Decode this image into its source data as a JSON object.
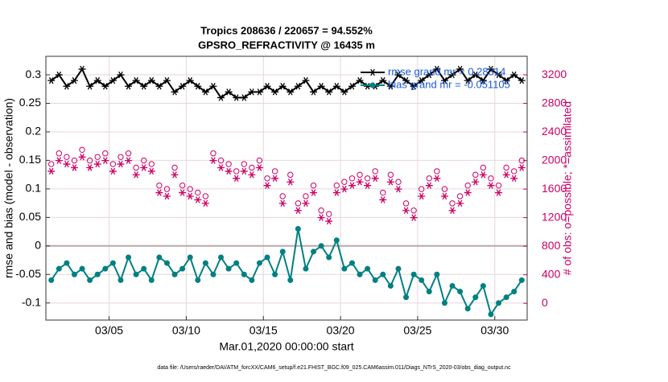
{
  "chart_data": {
    "type": "line",
    "title": "Tropics 208636 / 220657 = 94.552%",
    "subtitle": "GPSRO_REFRACTIVITY @ 16435 m",
    "x_label": "Mar.01,2020 00:00:00 start",
    "y_label": "rmse and bias (model - observation)",
    "y2_label": "# of obs: o=possible; *=assimilated",
    "footnote": "data file: /Users/raeder/DAI/ATM_forcXX/CAM6_setup/f.e21.FHIST_BGC.f09_025.CAM6assim.011/Diags_NTrS_2020-03/obs_diag_output.nc",
    "grid": true,
    "legend": "upper right",
    "xlim": [
      0.9,
      32.1
    ],
    "xticks": [
      {
        "value": 5,
        "label": "03/05"
      },
      {
        "value": 10,
        "label": "03/10"
      },
      {
        "value": 15,
        "label": "03/15"
      },
      {
        "value": 20,
        "label": "03/20"
      },
      {
        "value": 25,
        "label": "03/25"
      },
      {
        "value": 30,
        "label": "03/30"
      }
    ],
    "ylim": [
      -0.13,
      0.3325
    ],
    "yticks": [
      -0.1,
      -0.05,
      0,
      0.05,
      0.1,
      0.15,
      0.2,
      0.25,
      0.3
    ],
    "y2lim": [
      -235,
      3460
    ],
    "y2ticks": [
      0,
      400,
      800,
      1200,
      1600,
      2000,
      2400,
      2800,
      3200
    ],
    "x": [
      1.25,
      1.75,
      2.25,
      2.75,
      3.25,
      3.75,
      4.25,
      4.75,
      5.25,
      5.75,
      6.25,
      6.75,
      7.25,
      7.75,
      8.25,
      8.75,
      9.25,
      9.75,
      10.25,
      10.75,
      11.25,
      11.75,
      12.25,
      12.75,
      13.25,
      13.75,
      14.25,
      14.75,
      15.25,
      15.75,
      16.25,
      16.75,
      17.25,
      17.75,
      18.25,
      18.75,
      19.25,
      19.75,
      20.25,
      20.75,
      21.25,
      21.75,
      22.25,
      22.75,
      23.25,
      23.75,
      24.25,
      24.75,
      25.25,
      25.75,
      26.25,
      26.75,
      27.25,
      27.75,
      28.25,
      28.75,
      29.25,
      29.75,
      30.25,
      30.75,
      31.25,
      31.75
    ],
    "series": [
      {
        "name": "rmse grand mr = 0.28314",
        "color": "#000000",
        "marker": "asterisk",
        "line": true,
        "values": [
          0.29,
          0.3,
          0.28,
          0.29,
          0.31,
          0.28,
          0.29,
          0.28,
          0.29,
          0.3,
          0.28,
          0.29,
          0.28,
          0.29,
          0.28,
          0.29,
          0.27,
          0.28,
          0.29,
          0.28,
          0.27,
          0.28,
          0.26,
          0.27,
          0.26,
          0.26,
          0.27,
          0.27,
          0.28,
          0.27,
          0.28,
          0.27,
          0.28,
          0.29,
          0.27,
          0.28,
          0.27,
          0.28,
          0.27,
          0.28,
          0.29,
          0.28,
          0.28,
          0.29,
          0.28,
          0.3,
          0.29,
          0.28,
          0.29,
          0.3,
          0.31,
          0.29,
          0.3,
          0.31,
          0.29,
          0.3,
          0.29,
          0.31,
          0.3,
          0.29,
          0.3,
          0.29
        ]
      },
      {
        "name": "bias grand mr = -0.051105",
        "color": "#008080",
        "marker": "dot",
        "line": true,
        "values": [
          -0.06,
          -0.04,
          -0.03,
          -0.05,
          -0.04,
          -0.06,
          -0.05,
          -0.04,
          -0.03,
          -0.06,
          -0.02,
          -0.05,
          -0.04,
          -0.06,
          -0.02,
          -0.03,
          -0.05,
          -0.04,
          -0.02,
          -0.06,
          -0.03,
          -0.05,
          -0.02,
          -0.04,
          -0.03,
          -0.05,
          -0.06,
          -0.03,
          -0.02,
          -0.05,
          -0.01,
          -0.06,
          0.03,
          -0.04,
          -0.01,
          0,
          -0.02,
          0.01,
          -0.04,
          -0.03,
          -0.05,
          -0.04,
          -0.06,
          -0.05,
          -0.07,
          -0.04,
          -0.09,
          -0.05,
          -0.06,
          -0.08,
          -0.05,
          -0.1,
          -0.07,
          -0.08,
          -0.11,
          -0.09,
          -0.07,
          -0.12,
          -0.1,
          -0.09,
          -0.08,
          -0.06
        ]
      },
      {
        "color": "#cc0066",
        "marker": "circle",
        "line": false,
        "axis": "y2",
        "values": [
          1950,
          2100,
          2050,
          2000,
          2150,
          2000,
          2050,
          2100,
          1950,
          2050,
          2100,
          1900,
          2000,
          1950,
          1650,
          1600,
          1900,
          1650,
          1600,
          1550,
          1500,
          2100,
          2000,
          1950,
          1850,
          1950,
          1900,
          2000,
          1750,
          1850,
          1500,
          1800,
          1400,
          1500,
          1650,
          1300,
          1250,
          1650,
          1700,
          1750,
          1800,
          1750,
          1850,
          1550,
          1800,
          1700,
          1400,
          1300,
          1600,
          1750,
          1850,
          1600,
          1400,
          1500,
          1650,
          1800,
          1900,
          1750,
          1650,
          1900,
          1850,
          2000
        ]
      },
      {
        "color": "#cc0066",
        "marker": "asterisk",
        "line": false,
        "axis": "y2",
        "values": [
          1850,
          2000,
          1950,
          1900,
          2050,
          1900,
          1950,
          2000,
          1850,
          1950,
          2000,
          1800,
          1900,
          1850,
          1550,
          1500,
          1800,
          1550,
          1500,
          1450,
          1400,
          2000,
          1900,
          1850,
          1750,
          1850,
          1800,
          1900,
          1650,
          1750,
          1400,
          1700,
          1300,
          1400,
          1550,
          1200,
          1150,
          1550,
          1600,
          1650,
          1700,
          1650,
          1750,
          1450,
          1700,
          1600,
          1300,
          1200,
          1500,
          1650,
          1750,
          1500,
          1300,
          1400,
          1550,
          1700,
          1800,
          1650,
          1550,
          1800,
          1750,
          1900
        ]
      }
    ]
  }
}
